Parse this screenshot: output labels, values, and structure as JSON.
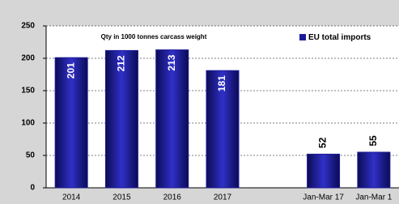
{
  "chart_data": {
    "type": "bar",
    "subtitle": "Qty in 1000 tonnes carcass weight",
    "categories": [
      "2014",
      "2015",
      "2016",
      "2017",
      null,
      "Jan-Mar 17",
      "Jan-Mar 1"
    ],
    "series": [
      {
        "name": "EU total imports",
        "color": "#1c1c9a",
        "values": [
          201,
          212,
          213,
          181,
          null,
          52,
          55
        ]
      }
    ],
    "ylim": [
      0,
      250
    ],
    "yticks": [
      0,
      50,
      100,
      150,
      200,
      250
    ],
    "grid": true,
    "legend": "top-right"
  }
}
